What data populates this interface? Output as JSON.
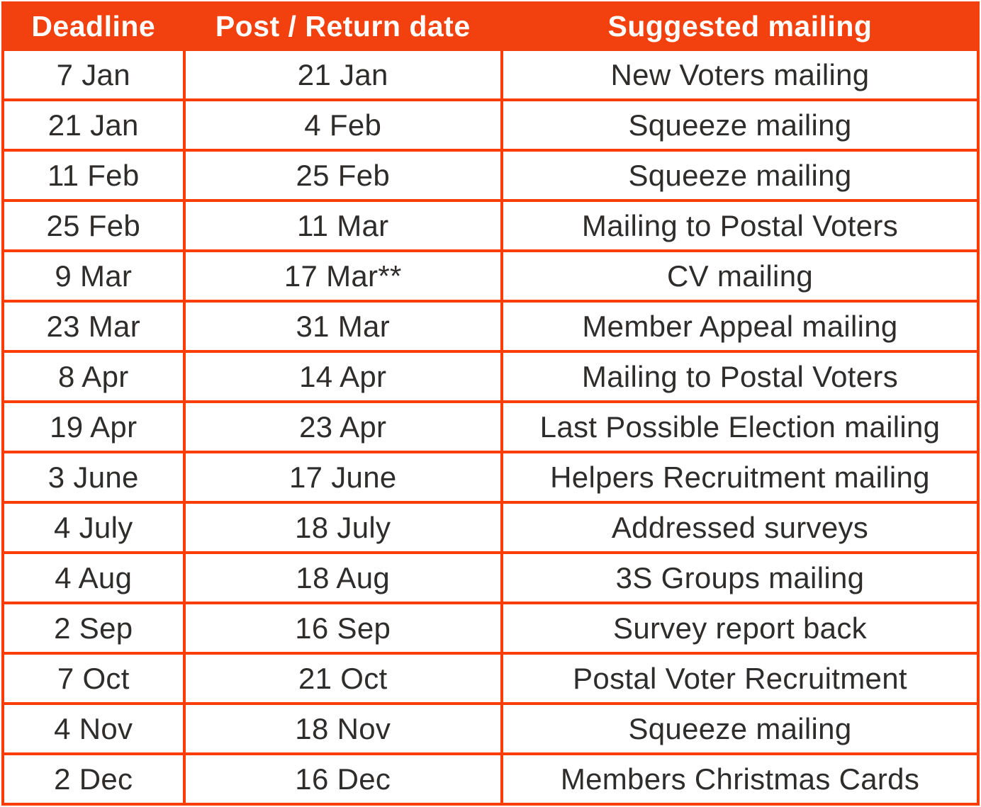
{
  "table": {
    "columns": [
      {
        "label": "Deadline"
      },
      {
        "label": "Post / Return date"
      },
      {
        "label": "Suggested mailing"
      }
    ],
    "rows": [
      [
        "7 Jan",
        "21 Jan",
        "New Voters mailing"
      ],
      [
        "21 Jan",
        "4 Feb",
        "Squeeze mailing"
      ],
      [
        "11 Feb",
        "25 Feb",
        "Squeeze mailing"
      ],
      [
        "25 Feb",
        "11 Mar",
        "Mailing to Postal Voters"
      ],
      [
        "9 Mar",
        "17 Mar**",
        "CV mailing"
      ],
      [
        "23 Mar",
        "31 Mar",
        "Member Appeal mailing"
      ],
      [
        "8 Apr",
        "14 Apr",
        "Mailing to Postal Voters"
      ],
      [
        "19 Apr",
        "23 Apr",
        "Last Possible Election mailing"
      ],
      [
        "3 June",
        "17 June",
        "Helpers Recruitment mailing"
      ],
      [
        "4 July",
        "18 July",
        "Addressed surveys"
      ],
      [
        "4 Aug",
        "18 Aug",
        "3S Groups mailing"
      ],
      [
        "2 Sep",
        "16 Sep",
        "Survey report back"
      ],
      [
        "7 Oct",
        "21 Oct",
        "Postal Voter Recruitment"
      ],
      [
        "4 Nov",
        "18 Nov",
        "Squeeze mailing"
      ],
      [
        "2 Dec",
        "16 Dec",
        "Members Christmas Cards"
      ]
    ]
  },
  "colors": {
    "accent": "#F2400E",
    "border": "#F93D05",
    "header_text": "#FFFFFF",
    "body_text": "#2E2D2C",
    "page_bg": "#FFFFFF"
  }
}
